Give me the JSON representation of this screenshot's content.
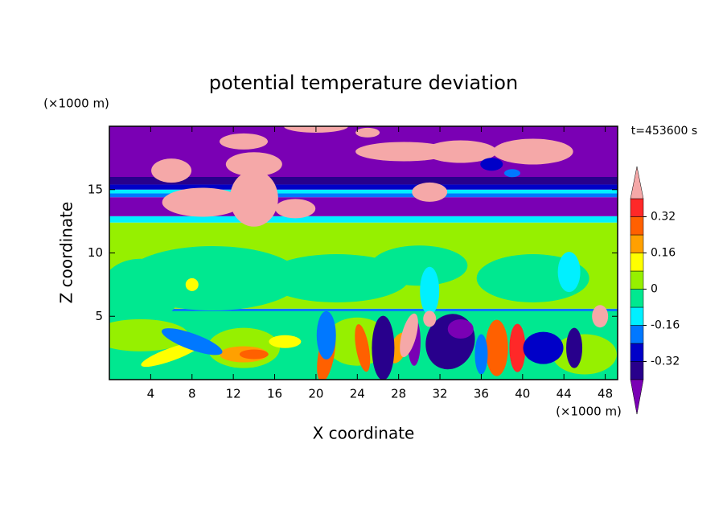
{
  "chart_data": {
    "type": "contour",
    "title": "potential temperature deviation",
    "x_label": "X coordinate",
    "y_label": "Z coordinate",
    "x_unit": "(×1000 m)",
    "y_unit": "(×1000 m)",
    "time_label": "t=453600 s",
    "xlim": [
      0,
      49.2
    ],
    "ylim": [
      0,
      20
    ],
    "xticks": [
      4,
      8,
      12,
      16,
      20,
      24,
      28,
      32,
      36,
      40,
      44,
      48
    ],
    "yticks": [
      5,
      10,
      15
    ],
    "colorbar": {
      "levels": [
        -0.4,
        -0.32,
        -0.24,
        -0.16,
        -0.08,
        0,
        0.08,
        0.16,
        0.24,
        0.32,
        0.4
      ],
      "colors": [
        "#7a00b4",
        "#28008c",
        "#0000c8",
        "#0078ff",
        "#00f0ff",
        "#00e890",
        "#96f000",
        "#ffff00",
        "#ffa000",
        "#ff6000",
        "#ff2828",
        "#f5a8a8"
      ],
      "ticks": [
        -0.32,
        -0.16,
        0,
        0.16,
        0.32
      ]
    }
  }
}
